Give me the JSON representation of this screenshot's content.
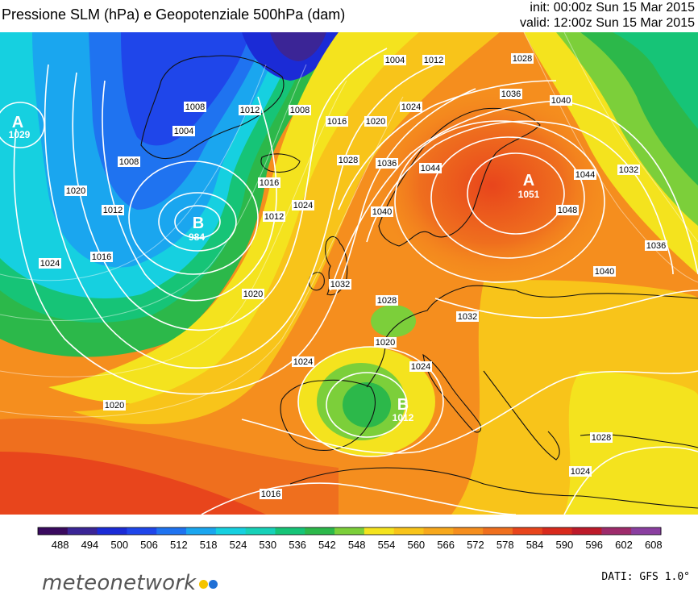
{
  "header": {
    "title": "Pressione SLM (hPa) e Geopotenziale 500hPa (dam)",
    "init": "init: 00:00z Sun 15 Mar 2015",
    "valid": "valid: 12:00z Sun 15 Mar 2015"
  },
  "map": {
    "pressure_centers": [
      {
        "letter": "A",
        "value": "1029"
      },
      {
        "letter": "B",
        "value": "984"
      },
      {
        "letter": "A",
        "value": "1051"
      },
      {
        "letter": "B",
        "value": "1012"
      }
    ],
    "isobar_labels": [
      "1004",
      "1008",
      "1012",
      "1016",
      "1020",
      "1024",
      "1028",
      "1032",
      "1036",
      "1040",
      "1044",
      "1048"
    ]
  },
  "colorbar": {
    "unit": "dam",
    "ticks": [
      "488",
      "494",
      "500",
      "506",
      "512",
      "518",
      "524",
      "530",
      "536",
      "542",
      "548",
      "554",
      "560",
      "566",
      "572",
      "578",
      "584",
      "590",
      "596",
      "602",
      "608"
    ],
    "colors": {
      "488": "#3a0a5e",
      "494": "#3b2596",
      "500": "#1b2bd6",
      "506": "#1f46ea",
      "512": "#1f73f0",
      "518": "#1aa6ef",
      "524": "#16d0e0",
      "530": "#17d1b8",
      "536": "#16c477",
      "542": "#2cb84a",
      "548": "#7ccf3a",
      "554": "#f4e31e",
      "560": "#f8c41a",
      "566": "#f7a81c",
      "572": "#f58e1e",
      "578": "#ef6f1e",
      "584": "#e8451c",
      "590": "#d82a1d",
      "596": "#bd1a2a",
      "602": "#9d2b6b",
      "608": "#8a3fa0"
    }
  },
  "footer": {
    "logo": "meteonetwork",
    "credit": "DATI: GFS 1.0°",
    "logo_dot_colors": [
      "#f5c400",
      "#1f6fd6"
    ]
  }
}
